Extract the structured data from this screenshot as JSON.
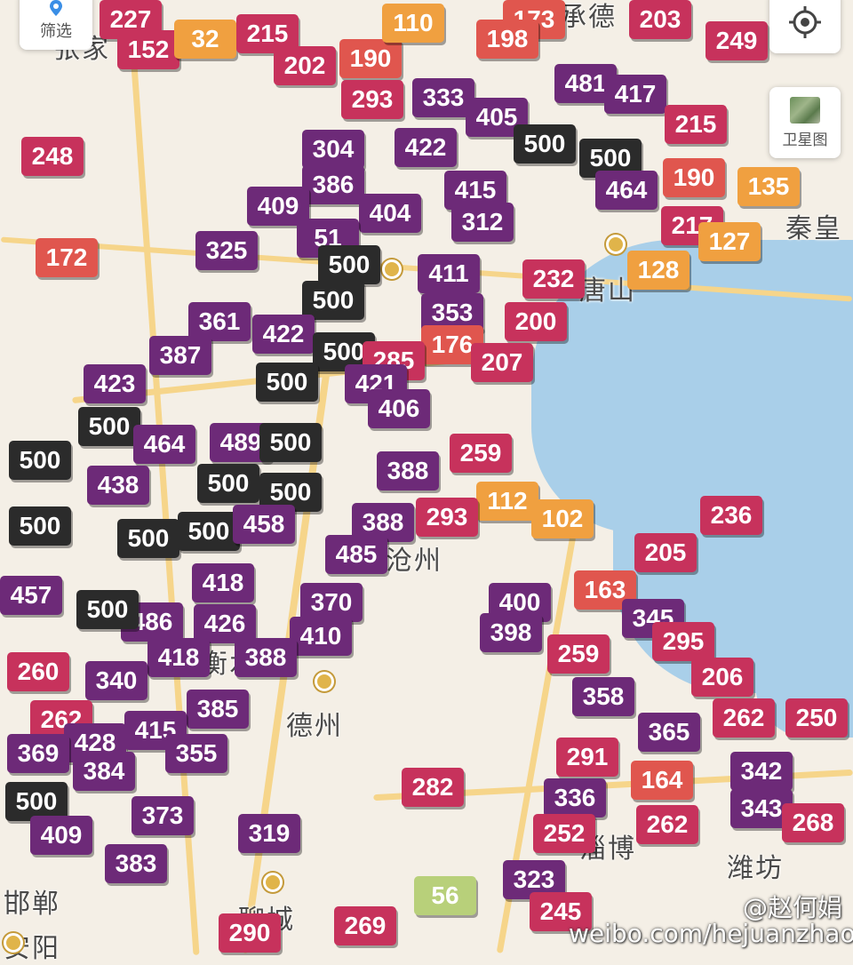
{
  "colors": {
    "hazardous": "#2b2b2b",
    "severe": "#6d2a78",
    "very_unhealthy": "#c7325c",
    "unhealthy": "#e0564e",
    "sensitive": "#f0a040",
    "moderate": "#b8d07a"
  },
  "controls": {
    "filter_label": "筛选",
    "filter_icon": "location-pin-icon",
    "locate_icon": "crosshair-icon",
    "satellite_label": "卫星图",
    "satellite_icon": "satellite-thumbnail-icon"
  },
  "cities": [
    {
      "name": "德州"
    },
    {
      "name": "秦皇"
    },
    {
      "name": "唐山"
    },
    {
      "name": "潍坊"
    },
    {
      "name": "邯郸"
    },
    {
      "name": "安阳"
    },
    {
      "name": "聊城"
    },
    {
      "name": "淄博"
    },
    {
      "name": "张家"
    },
    {
      "name": "承德"
    },
    {
      "name": "沧州"
    },
    {
      "name": "衡水"
    }
  ],
  "watermark": {
    "handle": "@赵何娟",
    "url": "weibo.com/hejuanzhao"
  },
  "markers": [
    {
      "v": "227",
      "c": "very_unhealthy"
    },
    {
      "v": "152",
      "c": "very_unhealthy"
    },
    {
      "v": "32",
      "c": "sensitive"
    },
    {
      "v": "215",
      "c": "very_unhealthy"
    },
    {
      "v": "202",
      "c": "very_unhealthy"
    },
    {
      "v": "190",
      "c": "unhealthy"
    },
    {
      "v": "110",
      "c": "sensitive"
    },
    {
      "v": "173",
      "c": "unhealthy"
    },
    {
      "v": "198",
      "c": "unhealthy"
    },
    {
      "v": "203",
      "c": "very_unhealthy"
    },
    {
      "v": "249",
      "c": "very_unhealthy"
    },
    {
      "v": "248",
      "c": "very_unhealthy"
    },
    {
      "v": "293",
      "c": "very_unhealthy"
    },
    {
      "v": "333",
      "c": "severe"
    },
    {
      "v": "481",
      "c": "severe"
    },
    {
      "v": "417",
      "c": "severe"
    },
    {
      "v": "405",
      "c": "severe"
    },
    {
      "v": "215",
      "c": "very_unhealthy"
    },
    {
      "v": "304",
      "c": "severe"
    },
    {
      "v": "422",
      "c": "severe"
    },
    {
      "v": "500",
      "c": "hazardous"
    },
    {
      "v": "500",
      "c": "hazardous"
    },
    {
      "v": "190",
      "c": "unhealthy"
    },
    {
      "v": "135",
      "c": "sensitive"
    },
    {
      "v": "386",
      "c": "severe"
    },
    {
      "v": "415",
      "c": "severe"
    },
    {
      "v": "464",
      "c": "severe"
    },
    {
      "v": "409",
      "c": "severe"
    },
    {
      "v": "404",
      "c": "severe"
    },
    {
      "v": "312",
      "c": "severe"
    },
    {
      "v": "217",
      "c": "very_unhealthy"
    },
    {
      "v": "127",
      "c": "sensitive"
    },
    {
      "v": "172",
      "c": "unhealthy"
    },
    {
      "v": "325",
      "c": "severe"
    },
    {
      "v": "51",
      "c": "severe"
    },
    {
      "v": "500",
      "c": "hazardous"
    },
    {
      "v": "411",
      "c": "severe"
    },
    {
      "v": "232",
      "c": "very_unhealthy"
    },
    {
      "v": "128",
      "c": "sensitive"
    },
    {
      "v": "500",
      "c": "hazardous"
    },
    {
      "v": "361",
      "c": "severe"
    },
    {
      "v": "353",
      "c": "severe"
    },
    {
      "v": "200",
      "c": "very_unhealthy"
    },
    {
      "v": "422",
      "c": "severe"
    },
    {
      "v": "387",
      "c": "severe"
    },
    {
      "v": "500",
      "c": "hazardous"
    },
    {
      "v": "176",
      "c": "unhealthy"
    },
    {
      "v": "285",
      "c": "very_unhealthy"
    },
    {
      "v": "207",
      "c": "very_unhealthy"
    },
    {
      "v": "423",
      "c": "severe"
    },
    {
      "v": "500",
      "c": "hazardous"
    },
    {
      "v": "421",
      "c": "severe"
    },
    {
      "v": "406",
      "c": "severe"
    },
    {
      "v": "500",
      "c": "hazardous"
    },
    {
      "v": "464",
      "c": "severe"
    },
    {
      "v": "489",
      "c": "severe"
    },
    {
      "v": "500",
      "c": "hazardous"
    },
    {
      "v": "500",
      "c": "hazardous"
    },
    {
      "v": "259",
      "c": "very_unhealthy"
    },
    {
      "v": "388",
      "c": "severe"
    },
    {
      "v": "438",
      "c": "severe"
    },
    {
      "v": "500",
      "c": "hazardous"
    },
    {
      "v": "500",
      "c": "hazardous"
    },
    {
      "v": "112",
      "c": "sensitive"
    },
    {
      "v": "102",
      "c": "sensitive"
    },
    {
      "v": "236",
      "c": "very_unhealthy"
    },
    {
      "v": "500",
      "c": "hazardous"
    },
    {
      "v": "500",
      "c": "hazardous"
    },
    {
      "v": "500",
      "c": "hazardous"
    },
    {
      "v": "458",
      "c": "severe"
    },
    {
      "v": "388",
      "c": "severe"
    },
    {
      "v": "293",
      "c": "very_unhealthy"
    },
    {
      "v": "205",
      "c": "very_unhealthy"
    },
    {
      "v": "485",
      "c": "severe"
    },
    {
      "v": "418",
      "c": "severe"
    },
    {
      "v": "163",
      "c": "unhealthy"
    },
    {
      "v": "400",
      "c": "severe"
    },
    {
      "v": "457",
      "c": "severe"
    },
    {
      "v": "370",
      "c": "severe"
    },
    {
      "v": "486",
      "c": "severe"
    },
    {
      "v": "426",
      "c": "severe"
    },
    {
      "v": "345",
      "c": "severe"
    },
    {
      "v": "500",
      "c": "hazardous"
    },
    {
      "v": "398",
      "c": "severe"
    },
    {
      "v": "410",
      "c": "severe"
    },
    {
      "v": "295",
      "c": "very_unhealthy"
    },
    {
      "v": "418",
      "c": "severe"
    },
    {
      "v": "388",
      "c": "severe"
    },
    {
      "v": "259",
      "c": "very_unhealthy"
    },
    {
      "v": "260",
      "c": "very_unhealthy"
    },
    {
      "v": "340",
      "c": "severe"
    },
    {
      "v": "206",
      "c": "very_unhealthy"
    },
    {
      "v": "358",
      "c": "severe"
    },
    {
      "v": "385",
      "c": "severe"
    },
    {
      "v": "262",
      "c": "very_unhealthy"
    },
    {
      "v": "250",
      "c": "very_unhealthy"
    },
    {
      "v": "262",
      "c": "very_unhealthy"
    },
    {
      "v": "428",
      "c": "severe"
    },
    {
      "v": "415",
      "c": "severe"
    },
    {
      "v": "365",
      "c": "severe"
    },
    {
      "v": "369",
      "c": "severe"
    },
    {
      "v": "355",
      "c": "severe"
    },
    {
      "v": "291",
      "c": "very_unhealthy"
    },
    {
      "v": "342",
      "c": "severe"
    },
    {
      "v": "384",
      "c": "severe"
    },
    {
      "v": "164",
      "c": "unhealthy"
    },
    {
      "v": "500",
      "c": "hazardous"
    },
    {
      "v": "282",
      "c": "very_unhealthy"
    },
    {
      "v": "336",
      "c": "severe"
    },
    {
      "v": "343",
      "c": "severe"
    },
    {
      "v": "373",
      "c": "severe"
    },
    {
      "v": "319",
      "c": "severe"
    },
    {
      "v": "252",
      "c": "very_unhealthy"
    },
    {
      "v": "262",
      "c": "very_unhealthy"
    },
    {
      "v": "268",
      "c": "very_unhealthy"
    },
    {
      "v": "409",
      "c": "severe"
    },
    {
      "v": "383",
      "c": "severe"
    },
    {
      "v": "56",
      "c": "moderate"
    },
    {
      "v": "323",
      "c": "severe"
    },
    {
      "v": "245",
      "c": "very_unhealthy"
    },
    {
      "v": "269",
      "c": "very_unhealthy"
    },
    {
      "v": "290",
      "c": "very_unhealthy"
    }
  ]
}
